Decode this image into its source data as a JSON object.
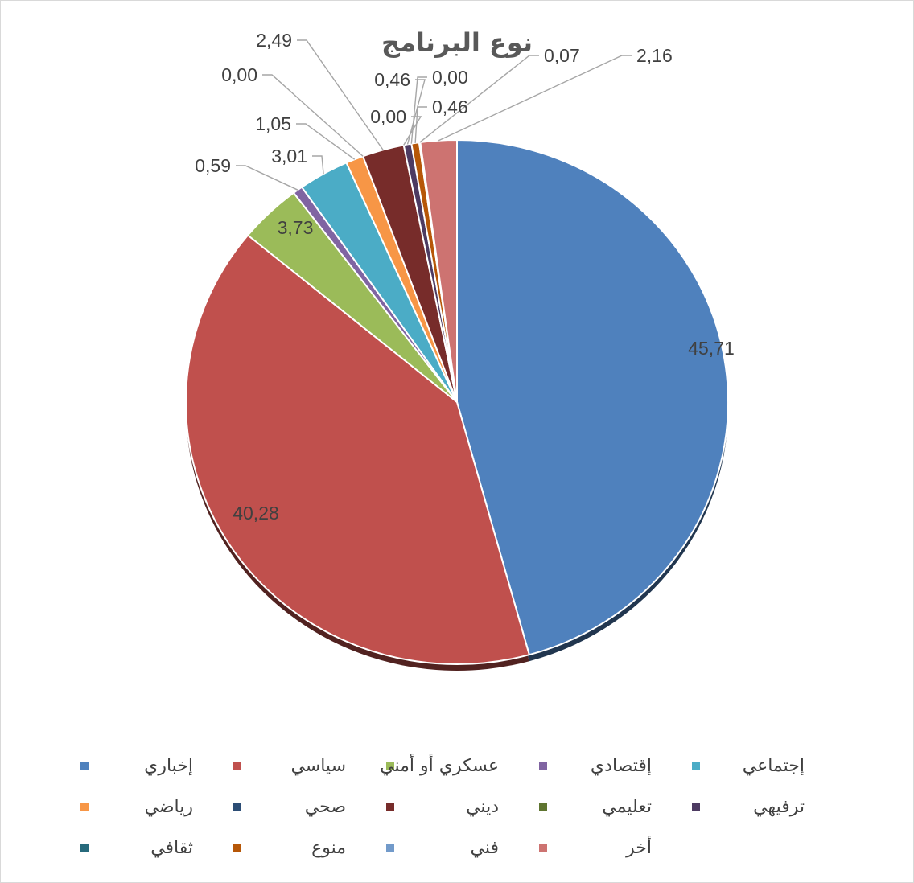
{
  "chart_data": {
    "type": "pie",
    "title": "نوع البرنامج",
    "legend_position": "bottom",
    "slices": [
      {
        "label": "إخباري",
        "value": 45.71,
        "value_text": "45,71",
        "color": "#4f81bd"
      },
      {
        "label": "سياسي",
        "value": 40.28,
        "value_text": "40,28",
        "color": "#c0504d"
      },
      {
        "label": "عسكري أو أمني",
        "value": 3.73,
        "value_text": "3,73",
        "color": "#9bbb59"
      },
      {
        "label": "إقتصادي",
        "value": 0.59,
        "value_text": "0,59",
        "color": "#8064a2"
      },
      {
        "label": "إجتماعي",
        "value": 3.01,
        "value_text": "3,01",
        "color": "#4bacc6"
      },
      {
        "label": "رياضي",
        "value": 1.05,
        "value_text": "1,05",
        "color": "#f79646"
      },
      {
        "label": "صحي",
        "value": 0.0,
        "value_text": "0,00",
        "color": "#2c4d75"
      },
      {
        "label": "ديني",
        "value": 2.49,
        "value_text": "2,49",
        "color": "#772c2a"
      },
      {
        "label": "تعليمي",
        "value": 0.0,
        "value_text": "0,00",
        "color": "#5f7530"
      },
      {
        "label": "ترفيهي",
        "value": 0.46,
        "value_text": "0,46",
        "color": "#4d3b62"
      },
      {
        "label": "ثقافي",
        "value": 0.0,
        "value_text": "0,00",
        "color": "#276a7c"
      },
      {
        "label": "منوع",
        "value": 0.46,
        "value_text": "0,46",
        "color": "#b65708"
      },
      {
        "label": "فني",
        "value": 0.07,
        "value_text": "0,07",
        "color": "#729aca"
      },
      {
        "label": "أخر",
        "value": 2.16,
        "value_text": "2,16",
        "color": "#cd7371"
      }
    ]
  }
}
